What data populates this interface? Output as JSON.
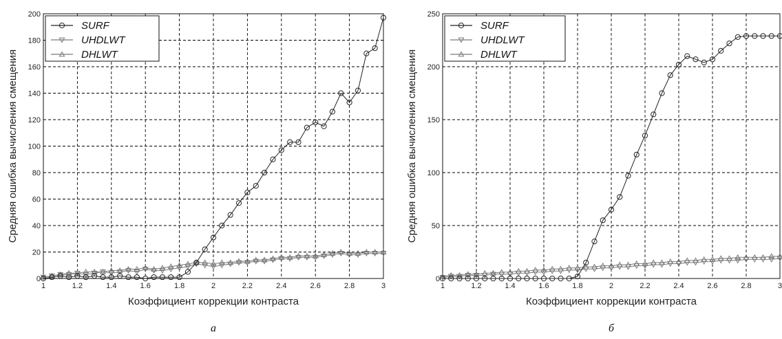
{
  "chart_data": [
    {
      "type": "line",
      "panel_label": "а",
      "xlabel": "Коэффициент коррекции контраста",
      "ylabel": "Средняя ошибка вычисления смещения",
      "xlim": [
        1,
        3
      ],
      "ylim": [
        0,
        200
      ],
      "xticks": [
        "1",
        "1.2",
        "1.4",
        "1.6",
        "1.8",
        "2",
        "2.2",
        "2.4",
        "2.6",
        "2.8",
        "3"
      ],
      "yticks": [
        "0",
        "20",
        "40",
        "60",
        "80",
        "100",
        "120",
        "140",
        "160",
        "180",
        "200"
      ],
      "grid": true,
      "legend": "top-left",
      "series": [
        {
          "name": "SURF",
          "marker": "circle",
          "x": [
            1,
            1.05,
            1.1,
            1.15,
            1.2,
            1.25,
            1.3,
            1.35,
            1.4,
            1.45,
            1.5,
            1.55,
            1.6,
            1.65,
            1.7,
            1.75,
            1.8,
            1.85,
            1.9,
            1.95,
            2,
            2.05,
            2.1,
            2.15,
            2.2,
            2.25,
            2.3,
            2.35,
            2.4,
            2.45,
            2.5,
            2.55,
            2.6,
            2.65,
            2.7,
            2.75,
            2.8,
            2.85,
            2.9,
            2.95,
            3
          ],
          "y": [
            0,
            1,
            2,
            1,
            2,
            1,
            2,
            1,
            1,
            2,
            1,
            1,
            0,
            1,
            1,
            1,
            1,
            5,
            12,
            22,
            31,
            40,
            48,
            57,
            65,
            70,
            80,
            90,
            97,
            103,
            103,
            114,
            118,
            115,
            126,
            140,
            133,
            142,
            170,
            174,
            197
          ]
        },
        {
          "name": "UHDLWT",
          "marker": "triangle-down",
          "x": [
            1,
            1.05,
            1.1,
            1.15,
            1.2,
            1.25,
            1.3,
            1.35,
            1.4,
            1.45,
            1.5,
            1.55,
            1.6,
            1.65,
            1.7,
            1.75,
            1.8,
            1.85,
            1.9,
            1.95,
            2,
            2.05,
            2.1,
            2.15,
            2.2,
            2.25,
            2.3,
            2.35,
            2.4,
            2.45,
            2.5,
            2.55,
            2.6,
            2.65,
            2.7,
            2.75,
            2.8,
            2.85,
            2.9,
            2.95,
            3
          ],
          "y": [
            1,
            2,
            3,
            3,
            4,
            3,
            4,
            5,
            4,
            5,
            6,
            5,
            7,
            6,
            6,
            7,
            8,
            9,
            11,
            10,
            9,
            10,
            11,
            12,
            12,
            13,
            13,
            14,
            15,
            15,
            16,
            16,
            16,
            17,
            18,
            19,
            18,
            18,
            19,
            19,
            19
          ]
        },
        {
          "name": "DHLWT",
          "marker": "triangle-up",
          "x": [
            1,
            1.05,
            1.1,
            1.15,
            1.2,
            1.25,
            1.3,
            1.35,
            1.4,
            1.45,
            1.5,
            1.55,
            1.6,
            1.65,
            1.7,
            1.75,
            1.8,
            1.85,
            1.9,
            1.95,
            2,
            2.05,
            2.1,
            2.15,
            2.2,
            2.25,
            2.3,
            2.35,
            2.4,
            2.45,
            2.5,
            2.55,
            2.6,
            2.65,
            2.7,
            2.75,
            2.8,
            2.85,
            2.9,
            2.95,
            3
          ],
          "y": [
            1,
            2,
            3,
            4,
            4,
            5,
            5,
            5,
            6,
            6,
            7,
            7,
            8,
            7,
            8,
            9,
            10,
            11,
            12,
            12,
            11,
            12,
            12,
            13,
            13,
            14,
            14,
            15,
            16,
            16,
            17,
            17,
            17,
            18,
            19,
            20,
            19,
            19,
            20,
            20,
            20
          ]
        }
      ]
    },
    {
      "type": "line",
      "panel_label": "б",
      "xlabel": "Коэффициент коррекции контраста",
      "ylabel": "Средняя ошибка вычисления смещения",
      "xlim": [
        1,
        3
      ],
      "ylim": [
        0,
        250
      ],
      "xticks": [
        "1",
        "1.2",
        "1.4",
        "1.6",
        "1.8",
        "2",
        "2.2",
        "2.4",
        "2.6",
        "2.8",
        "3"
      ],
      "yticks": [
        "0",
        "50",
        "100",
        "150",
        "200",
        "250"
      ],
      "grid": true,
      "legend": "top-left",
      "series": [
        {
          "name": "SURF",
          "marker": "circle",
          "x": [
            1,
            1.05,
            1.1,
            1.15,
            1.2,
            1.25,
            1.3,
            1.35,
            1.4,
            1.45,
            1.5,
            1.55,
            1.6,
            1.65,
            1.7,
            1.75,
            1.8,
            1.85,
            1.9,
            1.95,
            2,
            2.05,
            2.1,
            2.15,
            2.2,
            2.25,
            2.3,
            2.35,
            2.4,
            2.45,
            2.5,
            2.55,
            2.6,
            2.65,
            2.7,
            2.75,
            2.8,
            2.85,
            2.9,
            2.95,
            3
          ],
          "y": [
            0,
            0,
            0,
            0,
            0,
            0,
            0,
            0,
            0,
            0,
            0,
            0,
            0,
            0,
            0,
            0,
            2,
            15,
            35,
            55,
            65,
            77,
            97,
            117,
            135,
            155,
            175,
            192,
            202,
            210,
            207,
            204,
            207,
            215,
            222,
            228,
            229,
            229,
            229,
            229,
            229
          ]
        },
        {
          "name": "UHDLWT",
          "marker": "triangle-down",
          "x": [
            1,
            1.05,
            1.1,
            1.15,
            1.2,
            1.25,
            1.3,
            1.35,
            1.4,
            1.45,
            1.5,
            1.55,
            1.6,
            1.65,
            1.7,
            1.75,
            1.8,
            1.85,
            1.9,
            1.95,
            2,
            2.05,
            2.1,
            2.15,
            2.2,
            2.25,
            2.3,
            2.35,
            2.4,
            2.45,
            2.5,
            2.55,
            2.6,
            2.65,
            2.7,
            2.75,
            2.8,
            2.85,
            2.9,
            2.95,
            3
          ],
          "y": [
            1,
            2,
            2,
            3,
            3,
            3,
            4,
            4,
            4,
            5,
            5,
            6,
            6,
            7,
            7,
            8,
            8,
            9,
            9,
            10,
            10,
            11,
            11,
            12,
            12,
            13,
            13,
            14,
            14,
            15,
            15,
            16,
            16,
            17,
            17,
            17,
            18,
            18,
            18,
            18,
            19
          ]
        },
        {
          "name": "DHLWT",
          "marker": "triangle-up",
          "x": [
            1,
            1.05,
            1.1,
            1.15,
            1.2,
            1.25,
            1.3,
            1.35,
            1.4,
            1.45,
            1.5,
            1.55,
            1.6,
            1.65,
            1.7,
            1.75,
            1.8,
            1.85,
            1.9,
            1.95,
            2,
            2.05,
            2.1,
            2.15,
            2.2,
            2.25,
            2.3,
            2.35,
            2.4,
            2.45,
            2.5,
            2.55,
            2.6,
            2.65,
            2.7,
            2.75,
            2.8,
            2.85,
            2.9,
            2.95,
            3
          ],
          "y": [
            2,
            3,
            3,
            4,
            4,
            5,
            5,
            6,
            6,
            7,
            7,
            8,
            8,
            9,
            9,
            10,
            10,
            11,
            11,
            12,
            12,
            13,
            13,
            14,
            14,
            15,
            15,
            16,
            16,
            17,
            17,
            18,
            18,
            19,
            19,
            20,
            20,
            20,
            20,
            21,
            21
          ]
        }
      ]
    }
  ]
}
